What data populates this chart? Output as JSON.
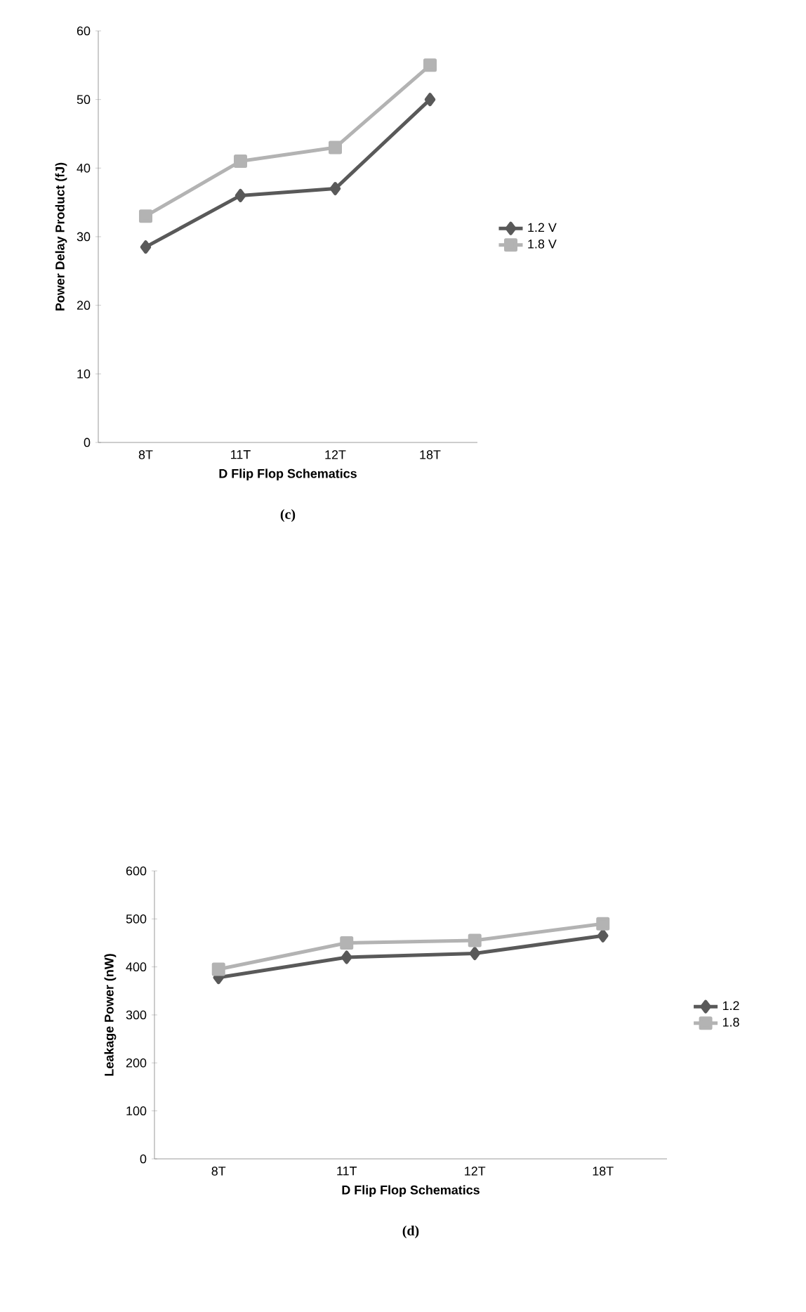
{
  "chart_data": [
    {
      "type": "line",
      "ylabel": "Power Delay Product (fJ)",
      "xlabel": "D Flip Flop Schematics",
      "categories": [
        "8T",
        "11T",
        "12T",
        "18T"
      ],
      "ylim": [
        0,
        60
      ],
      "yticks": [
        0,
        10,
        20,
        30,
        40,
        50,
        60
      ],
      "legend": "right",
      "line_style": "solid",
      "annotations": [
        "(c)"
      ],
      "series": [
        {
          "name": "1.2 V",
          "color": "#595959",
          "marker": "diamond",
          "values": [
            28.5,
            36,
            37,
            50
          ]
        },
        {
          "name": "1.8 V",
          "color": "#b3b3b3",
          "marker": "square",
          "values": [
            33,
            41,
            43,
            55
          ]
        }
      ]
    },
    {
      "type": "line",
      "ylabel": "Leakage Power (nW)",
      "xlabel": "D Flip Flop Schematics",
      "categories": [
        "8T",
        "11T",
        "12T",
        "18T"
      ],
      "ylim": [
        0,
        600
      ],
      "yticks": [
        0,
        100,
        200,
        300,
        400,
        500,
        600
      ],
      "legend": "right",
      "line_style": "solid",
      "annotations": [
        "(d)"
      ],
      "series": [
        {
          "name": "1.2",
          "color": "#595959",
          "marker": "diamond",
          "values": [
            378,
            420,
            428,
            465
          ]
        },
        {
          "name": "1.8",
          "color": "#b3b3b3",
          "marker": "square",
          "values": [
            395,
            450,
            455,
            490
          ]
        }
      ]
    }
  ]
}
